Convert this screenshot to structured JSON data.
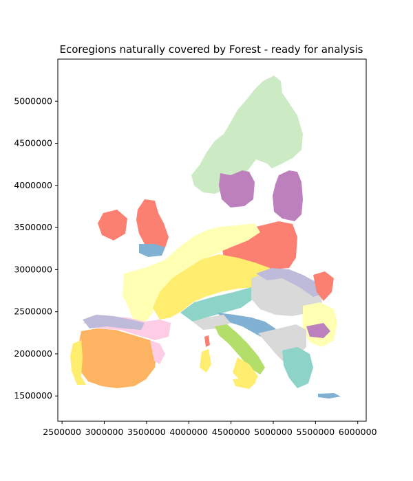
{
  "chart_data": {
    "type": "map",
    "title": "Ecoregions naturally covered by Forest - ready for analysis",
    "xlim": [
      2450000,
      6100000
    ],
    "ylim": [
      1200000,
      5500000
    ],
    "x_ticks": [
      2500000,
      3000000,
      3500000,
      4000000,
      4500000,
      5000000,
      5500000,
      6000000
    ],
    "y_ticks": [
      1500000,
      2000000,
      2500000,
      3000000,
      3500000,
      4000000,
      4500000,
      5000000
    ],
    "x_tick_labels": [
      "2500000",
      "3000000",
      "3500000",
      "4000000",
      "4500000",
      "5000000",
      "5500000",
      "6000000"
    ],
    "y_tick_labels": [
      "1500000",
      "2000000",
      "2500000",
      "3000000",
      "3500000",
      "4000000",
      "4500000",
      "5000000"
    ],
    "grid": false,
    "legend": "none",
    "colormap": "Set3",
    "regions": [
      {
        "id": "scandinavia",
        "color": "#ccebc5"
      },
      {
        "id": "baltic-finland",
        "color": "#bc80bd"
      },
      {
        "id": "british-isles",
        "color": "#fb8072"
      },
      {
        "id": "poland-belarus",
        "color": "#fb8072"
      },
      {
        "id": "central-europe",
        "color": "#ffed6f"
      },
      {
        "id": "atlantic-france-germany",
        "color": "#ffffb3"
      },
      {
        "id": "alps",
        "color": "#8dd3c7"
      },
      {
        "id": "pannonian",
        "color": "#d9d9d9"
      },
      {
        "id": "iberia",
        "color": "#fdb462"
      },
      {
        "id": "iberia-north",
        "color": "#bebada"
      },
      {
        "id": "pyrenees",
        "color": "#fccde5"
      },
      {
        "id": "italy",
        "color": "#b3de69"
      },
      {
        "id": "balkans",
        "color": "#80b1d3"
      },
      {
        "id": "romania",
        "color": "#ffffb3"
      },
      {
        "id": "greece",
        "color": "#8dd3c7"
      }
    ]
  }
}
